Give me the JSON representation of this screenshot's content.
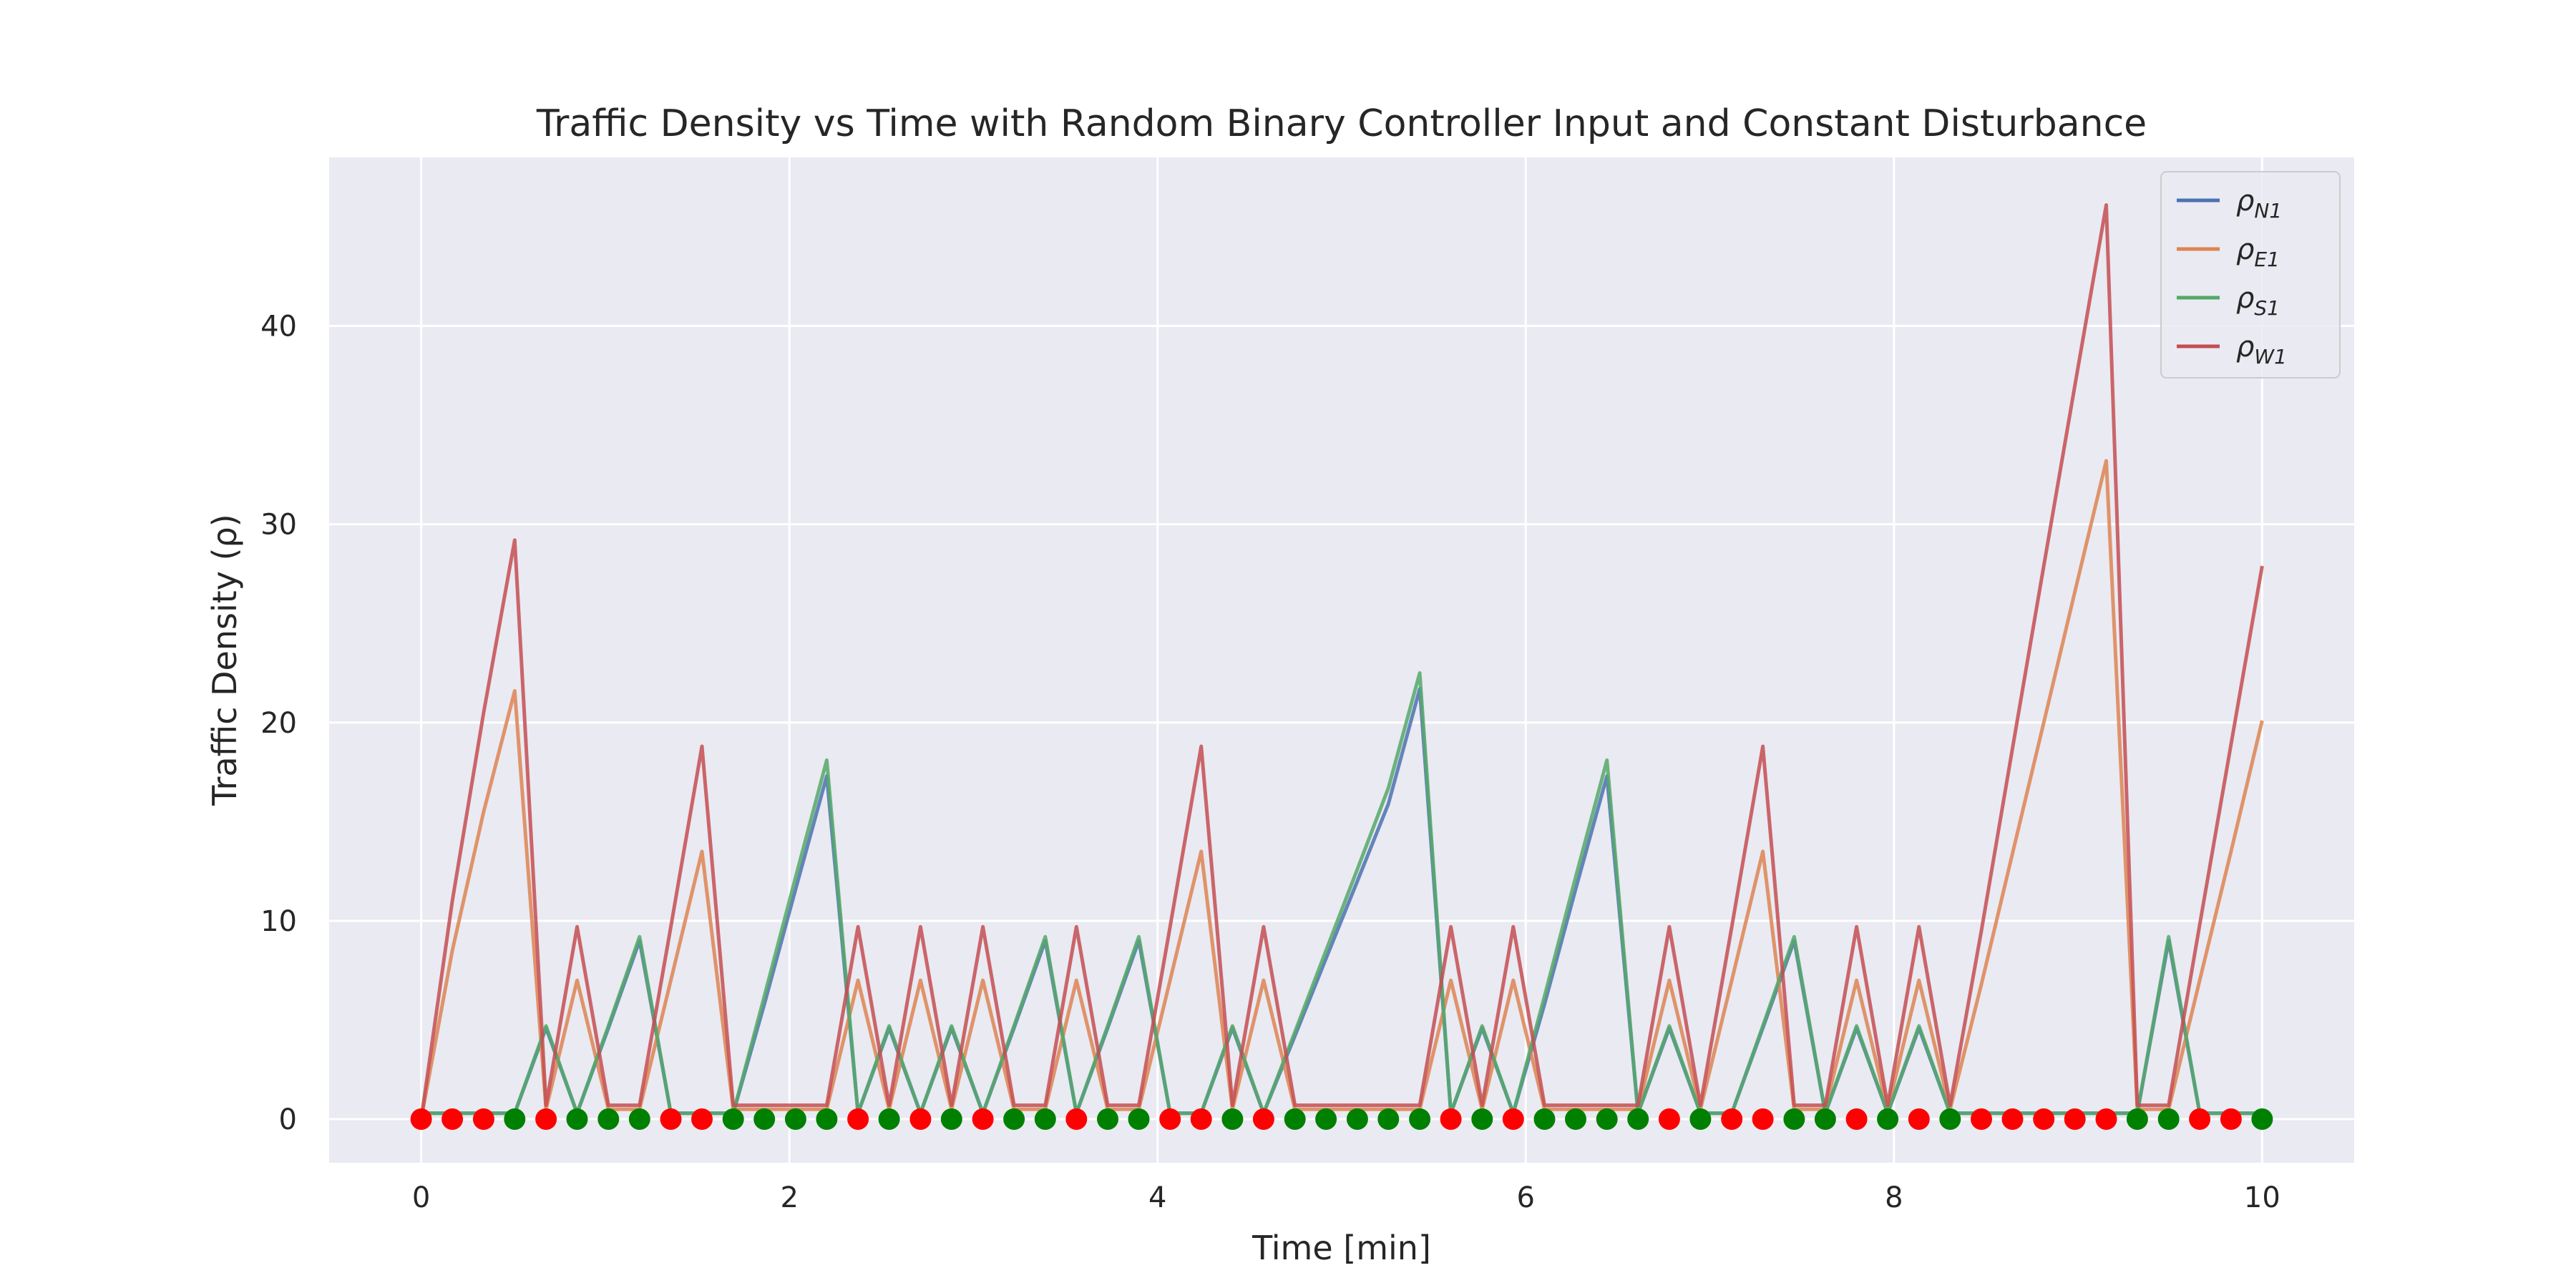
{
  "chart_data": {
    "type": "line",
    "title": "Traffic Density vs Time with Random Binary Controller Input and Constant Disturbance",
    "xlabel": "Time [min]",
    "ylabel": "Traffic Density (ρ)",
    "xlim": [
      -0.5,
      10.5
    ],
    "ylim": [
      -2.2,
      48.5
    ],
    "xticks": [
      0,
      2,
      4,
      6,
      8,
      10
    ],
    "yticks": [
      0,
      10,
      20,
      30,
      40
    ],
    "grid": true,
    "legend_position": "top-right",
    "x": [
      0,
      0.169,
      0.339,
      0.508,
      0.678,
      0.847,
      1.017,
      1.186,
      1.356,
      1.525,
      1.695,
      1.864,
      2.034,
      2.203,
      2.373,
      2.542,
      2.712,
      2.881,
      3.051,
      3.22,
      3.39,
      3.559,
      3.729,
      3.898,
      4.068,
      4.237,
      4.407,
      4.576,
      4.746,
      4.915,
      5.085,
      5.254,
      5.424,
      5.593,
      5.763,
      5.932,
      6.102,
      6.271,
      6.441,
      6.61,
      6.78,
      6.949,
      7.119,
      7.288,
      7.458,
      7.627,
      7.797,
      7.966,
      8.136,
      8.305,
      8.475,
      8.644,
      8.814,
      8.983,
      9.153,
      9.322,
      9.492,
      9.661,
      9.831,
      10.0
    ],
    "series": [
      {
        "name": "N1",
        "color": "#4c72b0",
        "values": [
          0.3,
          0.3,
          0.3,
          0.3,
          4.6,
          0.3,
          4.6,
          9.0,
          0.3,
          0.3,
          0.3,
          5.8,
          11.6,
          17.3,
          0.3,
          4.6,
          0.3,
          4.6,
          0.3,
          4.6,
          9.0,
          0.3,
          4.6,
          9.0,
          0.3,
          0.3,
          4.6,
          0.3,
          4.2,
          8.1,
          12.0,
          15.9,
          21.7,
          0.3,
          4.6,
          0.3,
          5.8,
          11.6,
          17.3,
          0.3,
          4.6,
          0.3,
          0.3,
          4.6,
          9.0,
          0.3,
          4.6,
          0.3,
          4.6,
          0.3,
          0.3,
          0.3,
          0.3,
          0.3,
          0.3,
          0.3,
          9.0,
          0.3,
          0.3,
          0.3
        ]
      },
      {
        "name": "E1",
        "color": "#dd8452",
        "values": [
          0,
          8.5,
          15.5,
          21.6,
          0.5,
          7.0,
          0.5,
          0.5,
          7.0,
          13.5,
          0.5,
          0.5,
          0.5,
          0.5,
          7.0,
          0.5,
          7.0,
          0.5,
          7.0,
          0.5,
          0.5,
          7.0,
          0.5,
          0.5,
          7.0,
          13.5,
          0.5,
          7.0,
          0.5,
          0.5,
          0.5,
          0.5,
          0.5,
          7.0,
          0.5,
          7.0,
          0.5,
          0.5,
          0.5,
          0.5,
          7.0,
          0.5,
          7.0,
          13.5,
          0.5,
          0.5,
          7.0,
          0.5,
          7.0,
          0.5,
          6.8,
          13.4,
          20.0,
          26.6,
          33.2,
          0.5,
          0.5,
          7.0,
          13.5,
          20.1
        ]
      },
      {
        "name": "S1",
        "color": "#55a868",
        "values": [
          0.3,
          0.3,
          0.3,
          0.3,
          4.7,
          0.3,
          4.7,
          9.2,
          0.3,
          0.3,
          0.3,
          6.2,
          12.2,
          18.1,
          0.3,
          4.7,
          0.3,
          4.7,
          0.3,
          4.7,
          9.2,
          0.3,
          4.7,
          9.2,
          0.3,
          0.3,
          4.7,
          0.3,
          4.4,
          8.5,
          12.6,
          16.7,
          22.5,
          0.3,
          4.7,
          0.3,
          6.2,
          12.2,
          18.1,
          0.3,
          4.7,
          0.3,
          0.3,
          4.7,
          9.2,
          0.3,
          4.7,
          0.3,
          4.7,
          0.3,
          0.3,
          0.3,
          0.3,
          0.3,
          0.3,
          0.3,
          9.2,
          0.3,
          0.3,
          0.3
        ]
      },
      {
        "name": "W1",
        "color": "#c44e52",
        "values": [
          0,
          11.0,
          20.5,
          29.2,
          0.7,
          9.7,
          0.7,
          0.7,
          9.7,
          18.8,
          0.7,
          0.7,
          0.7,
          0.7,
          9.7,
          0.7,
          9.7,
          0.7,
          9.7,
          0.7,
          0.7,
          9.7,
          0.7,
          0.7,
          9.7,
          18.8,
          0.7,
          9.7,
          0.7,
          0.7,
          0.7,
          0.7,
          0.7,
          9.7,
          0.7,
          9.7,
          0.7,
          0.7,
          0.7,
          0.7,
          9.7,
          0.7,
          9.7,
          18.8,
          0.7,
          0.7,
          9.7,
          0.7,
          9.7,
          0.7,
          9.5,
          18.7,
          27.9,
          37.0,
          46.1,
          0.7,
          0.7,
          9.8,
          18.9,
          27.9
        ]
      }
    ],
    "controller_markers": {
      "y": 0,
      "colors": {
        "0": "#ff0000",
        "1": "#008000"
      },
      "values": [
        0,
        0,
        0,
        1,
        0,
        1,
        1,
        1,
        0,
        0,
        1,
        1,
        1,
        1,
        0,
        1,
        0,
        1,
        0,
        1,
        1,
        0,
        1,
        1,
        0,
        0,
        1,
        0,
        1,
        1,
        1,
        1,
        1,
        0,
        1,
        0,
        1,
        1,
        1,
        1,
        0,
        1,
        0,
        0,
        1,
        1,
        0,
        1,
        0,
        1,
        0,
        0,
        0,
        0,
        0,
        1,
        1,
        0,
        0,
        1
      ]
    }
  },
  "legend": {
    "symbol": "ρ",
    "entries": [
      {
        "sub": "N1",
        "color": "#4c72b0"
      },
      {
        "sub": "E1",
        "color": "#dd8452"
      },
      {
        "sub": "S1",
        "color": "#55a868"
      },
      {
        "sub": "W1",
        "color": "#c44e52"
      }
    ]
  },
  "style": {
    "plot_background": "#eaeaf2",
    "grid_color": "#ffffff"
  }
}
